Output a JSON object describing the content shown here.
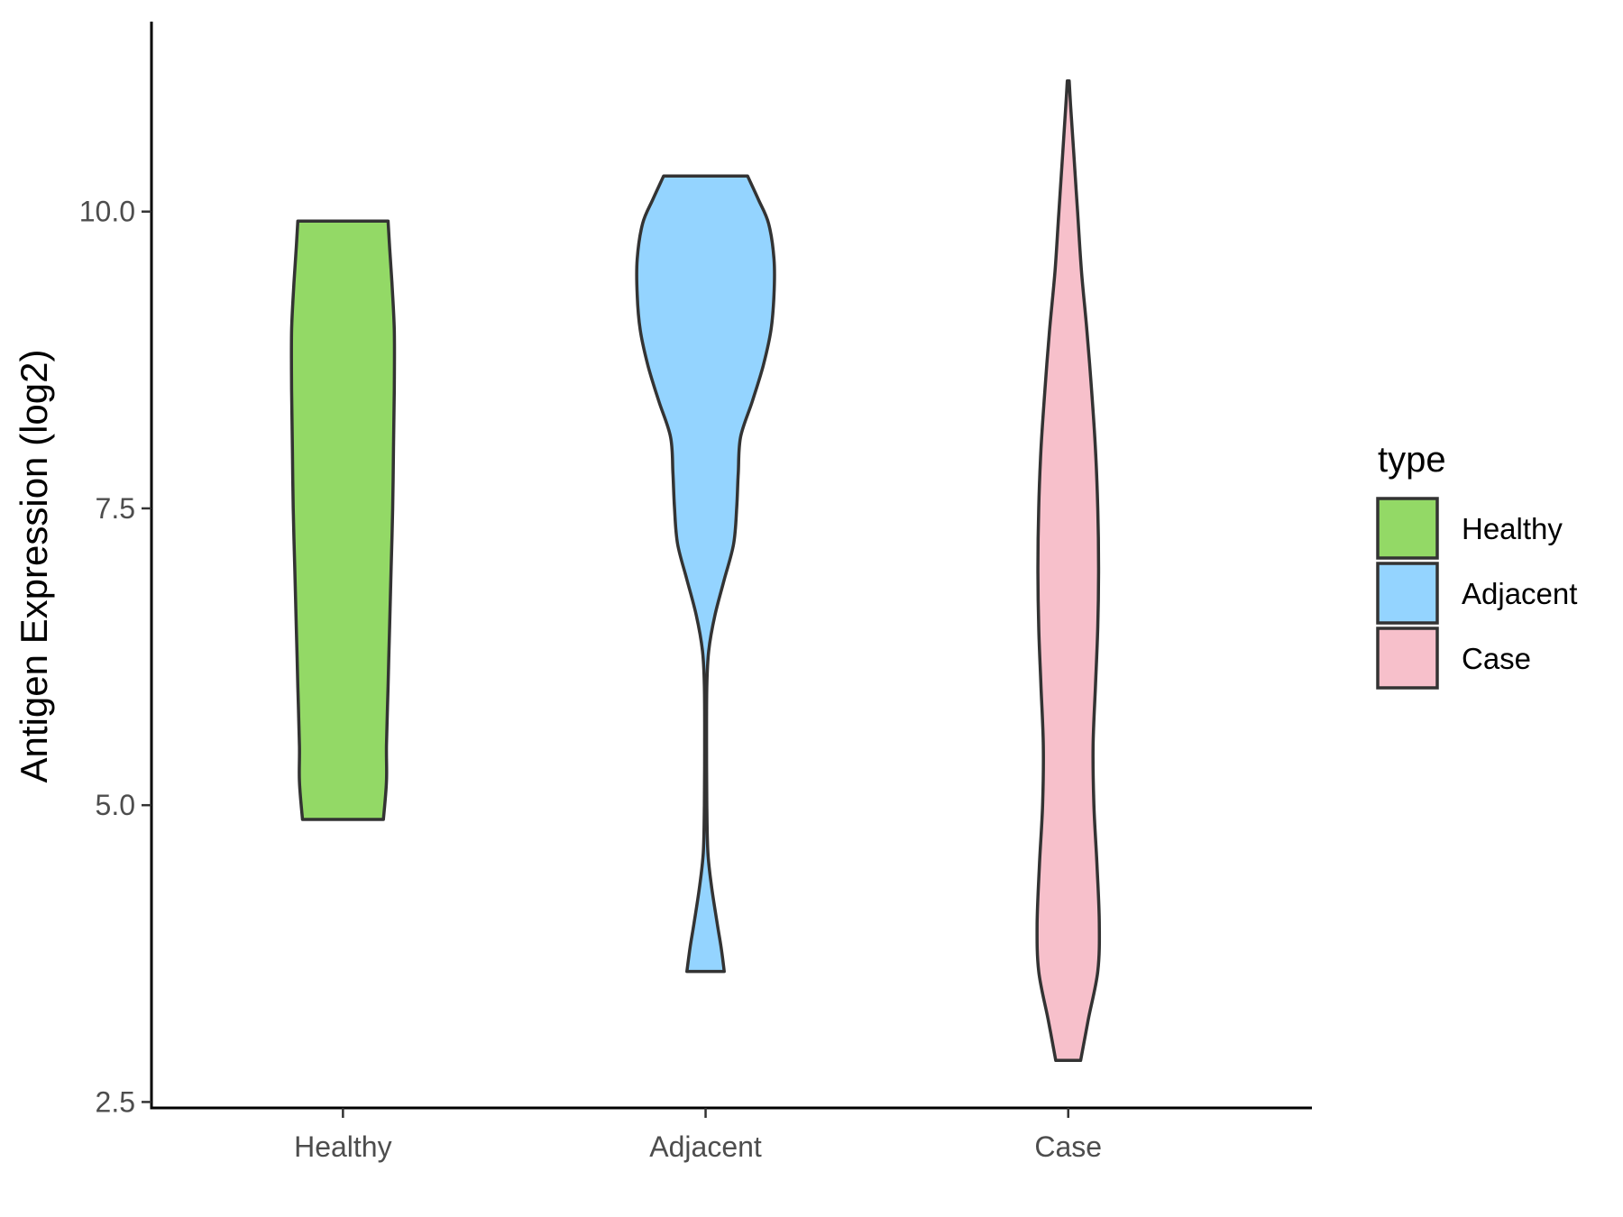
{
  "chart_data": {
    "type": "violin",
    "ylabel": "Antigen Expression (log2)",
    "xlabel": "",
    "ylim": [
      2.45,
      11.6
    ],
    "yticks": [
      2.5,
      5.0,
      7.5,
      10.0
    ],
    "ytick_labels": [
      "2.5",
      "5.0",
      "7.5",
      "10.0"
    ],
    "grid": false,
    "legend": {
      "title": "type",
      "placement": "right",
      "entries": [
        "Healthy",
        "Adjacent",
        "Case"
      ]
    },
    "categories": [
      "Healthy",
      "Adjacent",
      "Case"
    ],
    "series": [
      {
        "name": "Healthy",
        "color": "#93d966",
        "min": 4.88,
        "max": 9.92,
        "profile": [
          [
            4.88,
            0.26
          ],
          [
            5.2,
            0.28
          ],
          [
            5.5,
            0.28
          ],
          [
            6.0,
            0.29
          ],
          [
            6.5,
            0.3
          ],
          [
            7.0,
            0.31
          ],
          [
            7.5,
            0.32
          ],
          [
            8.0,
            0.325
          ],
          [
            8.5,
            0.33
          ],
          [
            9.0,
            0.33
          ],
          [
            9.4,
            0.315
          ],
          [
            9.7,
            0.3
          ],
          [
            9.92,
            0.29
          ]
        ]
      },
      {
        "name": "Adjacent",
        "color": "#94d4ff",
        "min": 3.6,
        "max": 10.3,
        "profile": [
          [
            3.6,
            0.12
          ],
          [
            3.8,
            0.1
          ],
          [
            4.0,
            0.075
          ],
          [
            4.3,
            0.04
          ],
          [
            4.6,
            0.015
          ],
          [
            5.0,
            0.008
          ],
          [
            5.5,
            0.006
          ],
          [
            6.0,
            0.008
          ],
          [
            6.3,
            0.02
          ],
          [
            6.6,
            0.06
          ],
          [
            6.9,
            0.12
          ],
          [
            7.2,
            0.18
          ],
          [
            7.5,
            0.2
          ],
          [
            7.8,
            0.21
          ],
          [
            8.1,
            0.225
          ],
          [
            8.4,
            0.3
          ],
          [
            8.7,
            0.37
          ],
          [
            9.0,
            0.42
          ],
          [
            9.3,
            0.44
          ],
          [
            9.6,
            0.44
          ],
          [
            9.9,
            0.405
          ],
          [
            10.1,
            0.34
          ],
          [
            10.3,
            0.27
          ]
        ]
      },
      {
        "name": "Case",
        "color": "#f7c0cb",
        "min": 2.85,
        "max": 11.1,
        "profile": [
          [
            2.85,
            0.08
          ],
          [
            3.2,
            0.13
          ],
          [
            3.6,
            0.19
          ],
          [
            4.0,
            0.2
          ],
          [
            4.5,
            0.185
          ],
          [
            5.0,
            0.165
          ],
          [
            5.5,
            0.16
          ],
          [
            6.0,
            0.175
          ],
          [
            6.5,
            0.19
          ],
          [
            7.0,
            0.195
          ],
          [
            7.5,
            0.19
          ],
          [
            8.0,
            0.175
          ],
          [
            8.5,
            0.15
          ],
          [
            9.0,
            0.12
          ],
          [
            9.5,
            0.085
          ],
          [
            10.0,
            0.06
          ],
          [
            10.5,
            0.035
          ],
          [
            10.9,
            0.015
          ],
          [
            11.1,
            0.006
          ]
        ]
      }
    ]
  }
}
